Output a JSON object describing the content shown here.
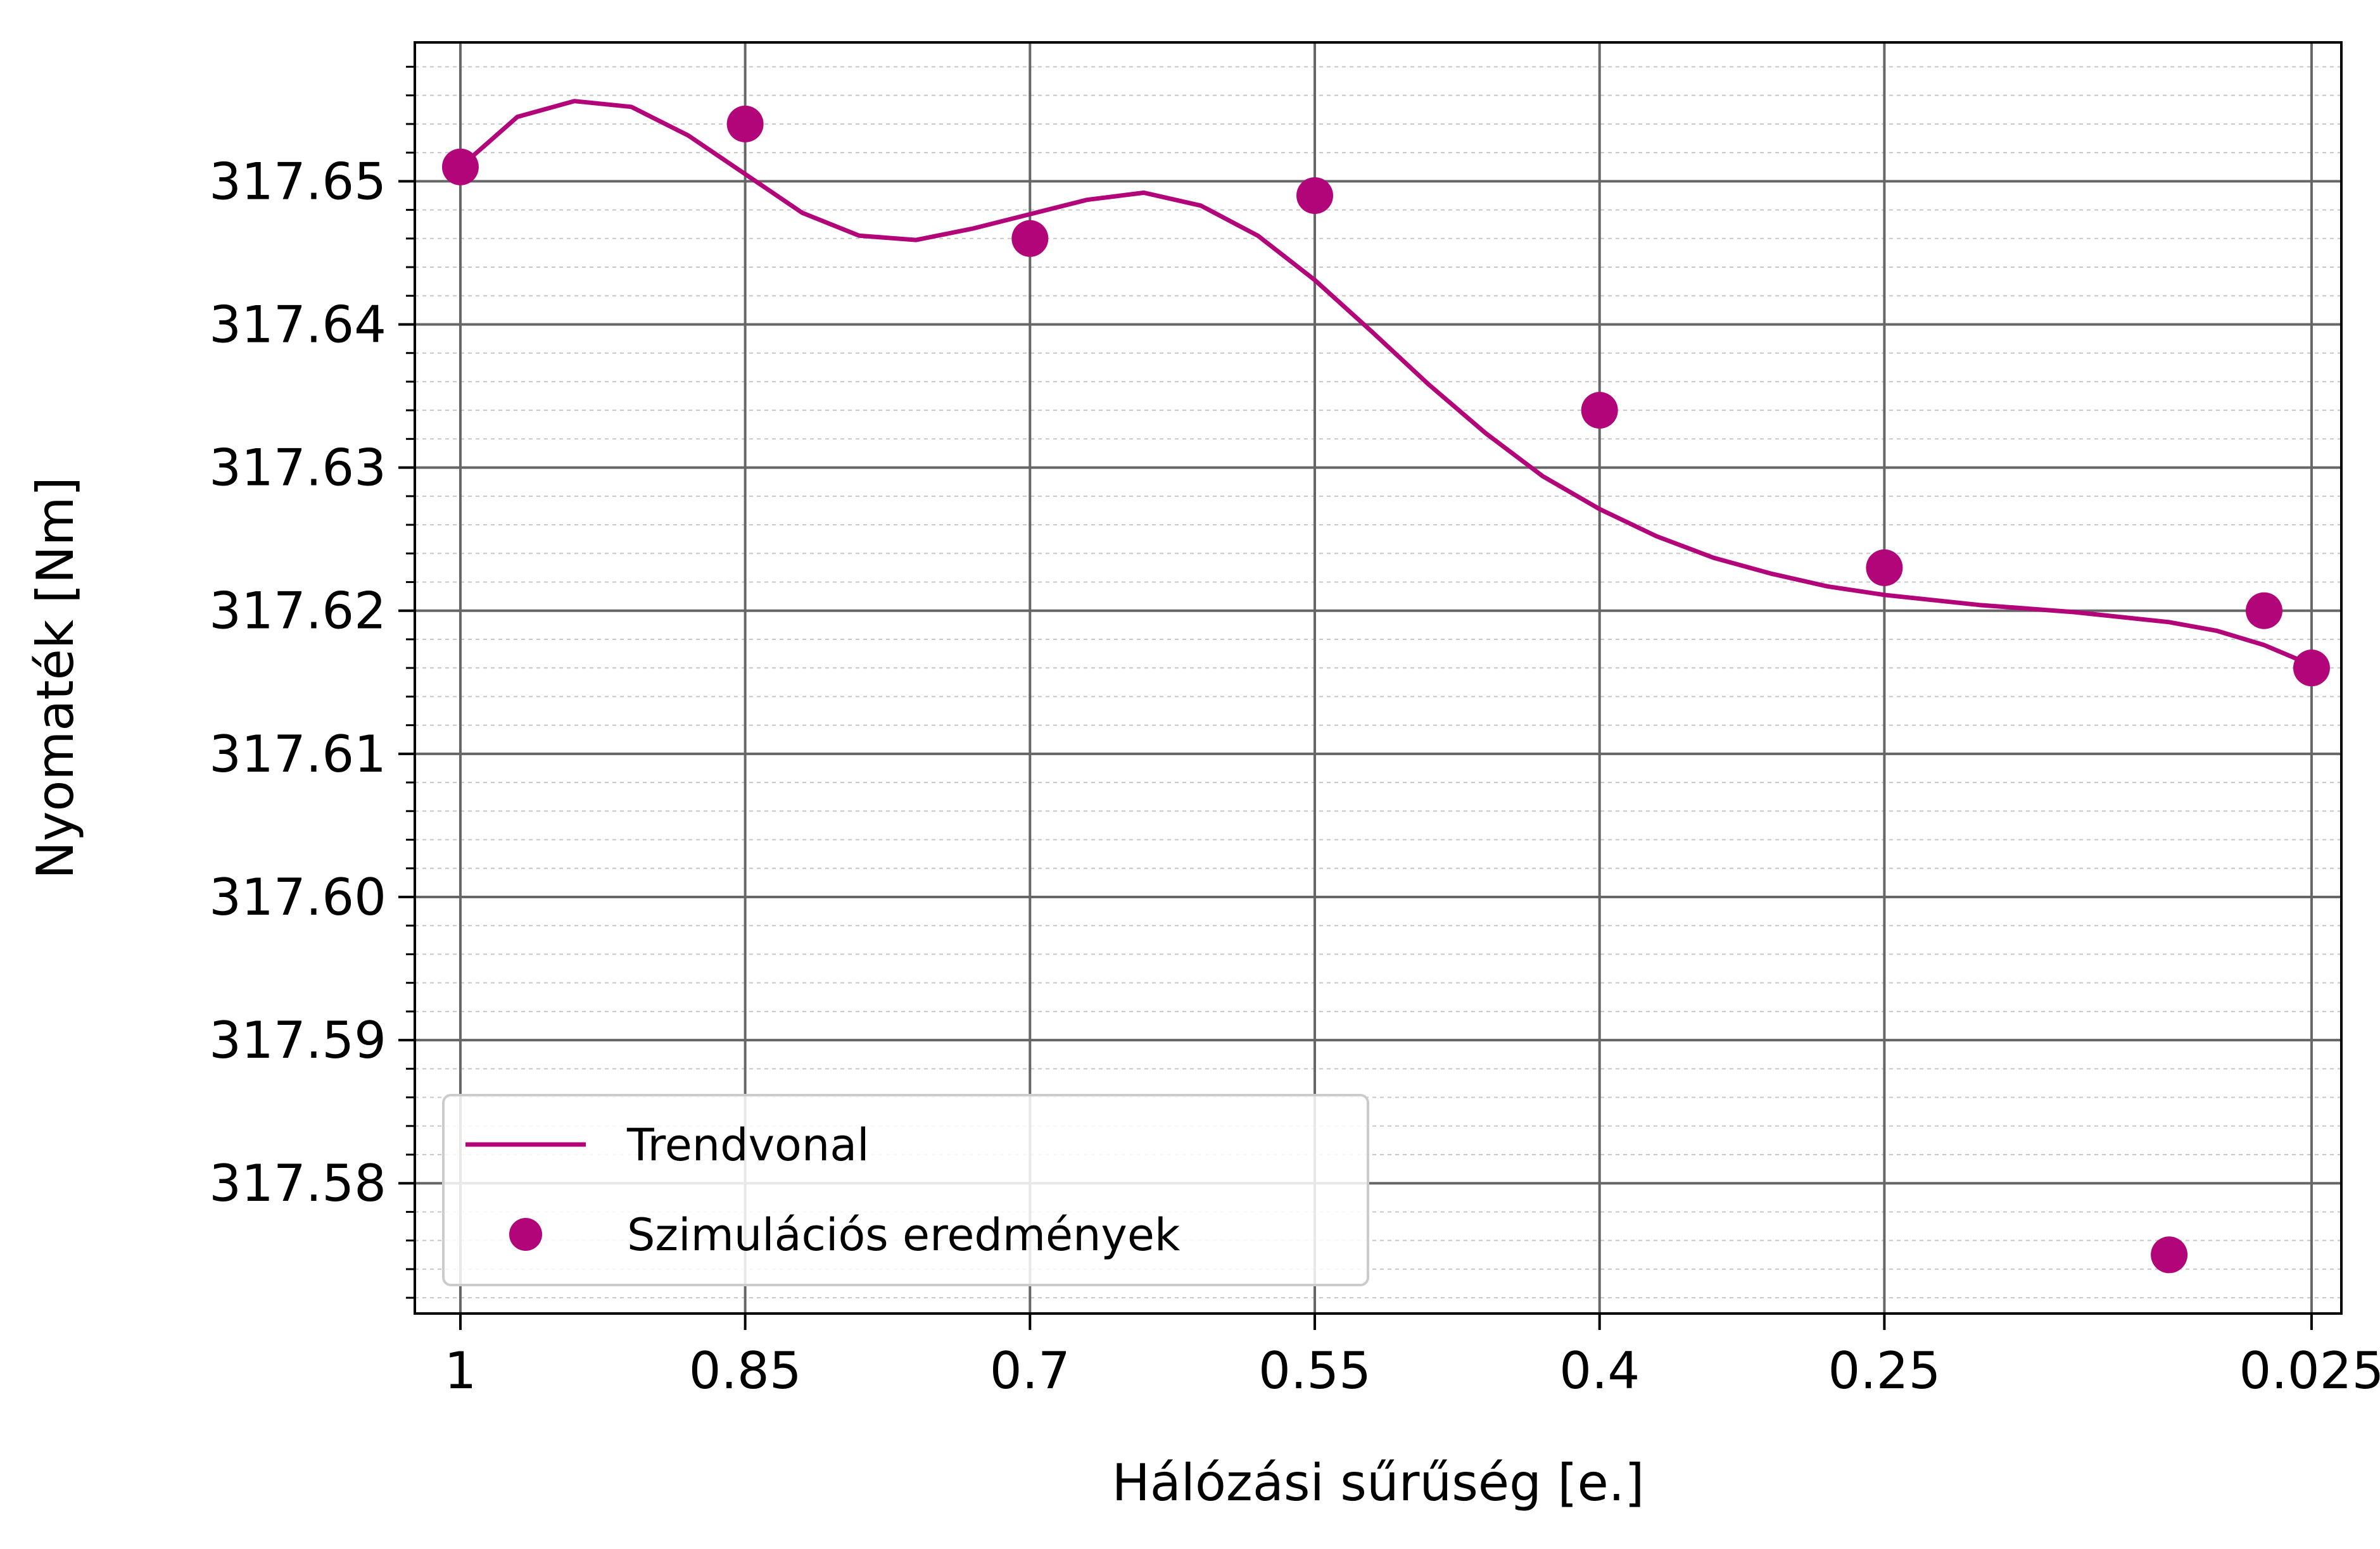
{
  "chart_data": {
    "type": "scatter",
    "title": "",
    "xlabel": "Hálózási sűrűség [e.]",
    "ylabel": "Nyomaték [Nm]",
    "x_reversed": true,
    "xlim": [
      1.024,
      0.0093
    ],
    "ylim": [
      317.5709,
      317.6597
    ],
    "x_ticks": [
      1,
      0.85,
      0.7,
      0.55,
      0.4,
      0.25,
      0.025
    ],
    "x_tick_labels": [
      "1",
      "0.85",
      "0.7",
      "0.55",
      "0.4",
      "0.25",
      "0.025"
    ],
    "y_ticks": [
      317.58,
      317.59,
      317.6,
      317.61,
      317.62,
      317.63,
      317.64,
      317.65
    ],
    "y_tick_labels": [
      "317.58",
      "317.59",
      "317.60",
      "317.61",
      "317.62",
      "317.63",
      "317.64",
      "317.65"
    ],
    "grid": true,
    "minor_grid": true,
    "legend_position": "lower-left",
    "series": [
      {
        "name": "Trendvonal",
        "type": "line",
        "color": "#b3057a",
        "x": [
          1.0,
          0.97,
          0.94,
          0.91,
          0.88,
          0.85,
          0.82,
          0.79,
          0.76,
          0.73,
          0.7,
          0.67,
          0.64,
          0.61,
          0.58,
          0.55,
          0.52,
          0.49,
          0.46,
          0.43,
          0.4,
          0.37,
          0.34,
          0.31,
          0.28,
          0.25,
          0.2,
          0.15,
          0.1,
          0.075,
          0.05,
          0.025
        ],
        "y": [
          317.651,
          317.6545,
          317.6556,
          317.6552,
          317.6532,
          317.6505,
          317.6478,
          317.6462,
          317.6459,
          317.6467,
          317.6477,
          317.6487,
          317.6492,
          317.6483,
          317.6462,
          317.6431,
          317.6395,
          317.6358,
          317.6324,
          317.6294,
          317.6271,
          317.6252,
          317.6237,
          317.6226,
          317.6217,
          317.6211,
          317.6204,
          317.6199,
          317.6192,
          317.6186,
          317.6176,
          317.6162
        ]
      },
      {
        "name": "Szimulációs eredmények",
        "type": "scatter",
        "color": "#b3057a",
        "x": [
          1.0,
          0.85,
          0.7,
          0.55,
          0.4,
          0.25,
          0.1,
          0.05,
          0.025
        ],
        "y": [
          317.651,
          317.654,
          317.646,
          317.649,
          317.634,
          317.623,
          317.575,
          317.62,
          317.616
        ]
      }
    ]
  }
}
